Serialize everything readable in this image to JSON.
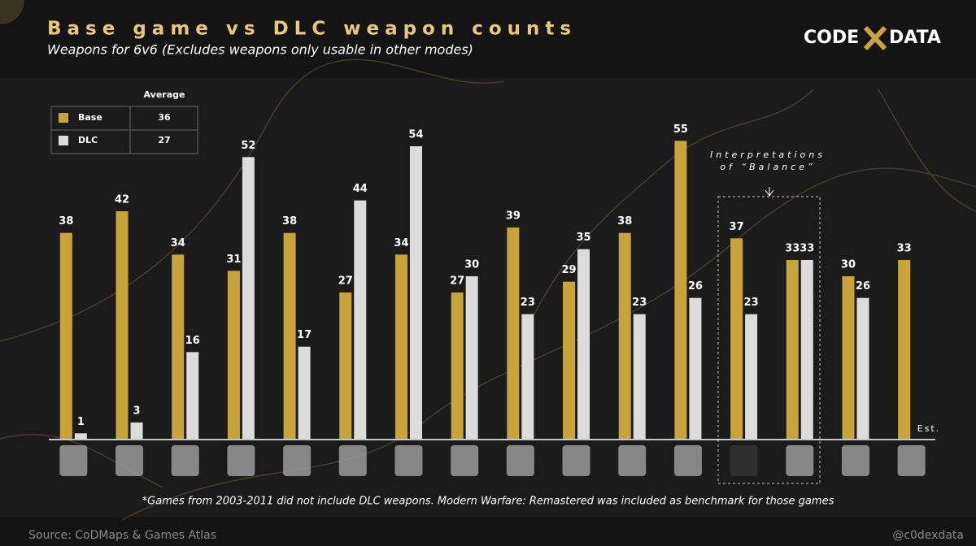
{
  "chart_data": {
    "type": "bar",
    "title": "Base game vs DLC weapon counts",
    "subtitle": "Weapons for 6v6 (Excludes weapons only usable in other modes)",
    "categories": [
      null,
      null,
      null,
      null,
      null,
      null,
      null,
      null,
      null,
      null,
      null,
      null,
      null,
      null,
      null,
      null
    ],
    "series": [
      {
        "name": "Base",
        "color": "#c9a43a",
        "average": 36,
        "values": [
          38,
          42,
          34,
          31,
          38,
          27,
          34,
          27,
          39,
          29,
          38,
          55,
          37,
          33,
          30,
          33
        ]
      },
      {
        "name": "DLC",
        "color": "#dcdcdc",
        "average": 27,
        "values": [
          1,
          3,
          16,
          52,
          17,
          44,
          54,
          30,
          23,
          35,
          23,
          26,
          23,
          33,
          26,
          null
        ]
      }
    ],
    "legend_header": "Average",
    "ylim": [
      0,
      60
    ],
    "annotation": [
      "Interpretations",
      "of “Balance”"
    ],
    "estimate_label": "Est.",
    "footnote": "*Games from 2003-2011 did not include DLC weapons. Modern Warfare: Remastered was included as benchmark for those games",
    "source": "Source: CoDMaps & Games Atlas",
    "handle": "@c0dexdata",
    "logo": [
      "CODE",
      "DATA"
    ]
  }
}
